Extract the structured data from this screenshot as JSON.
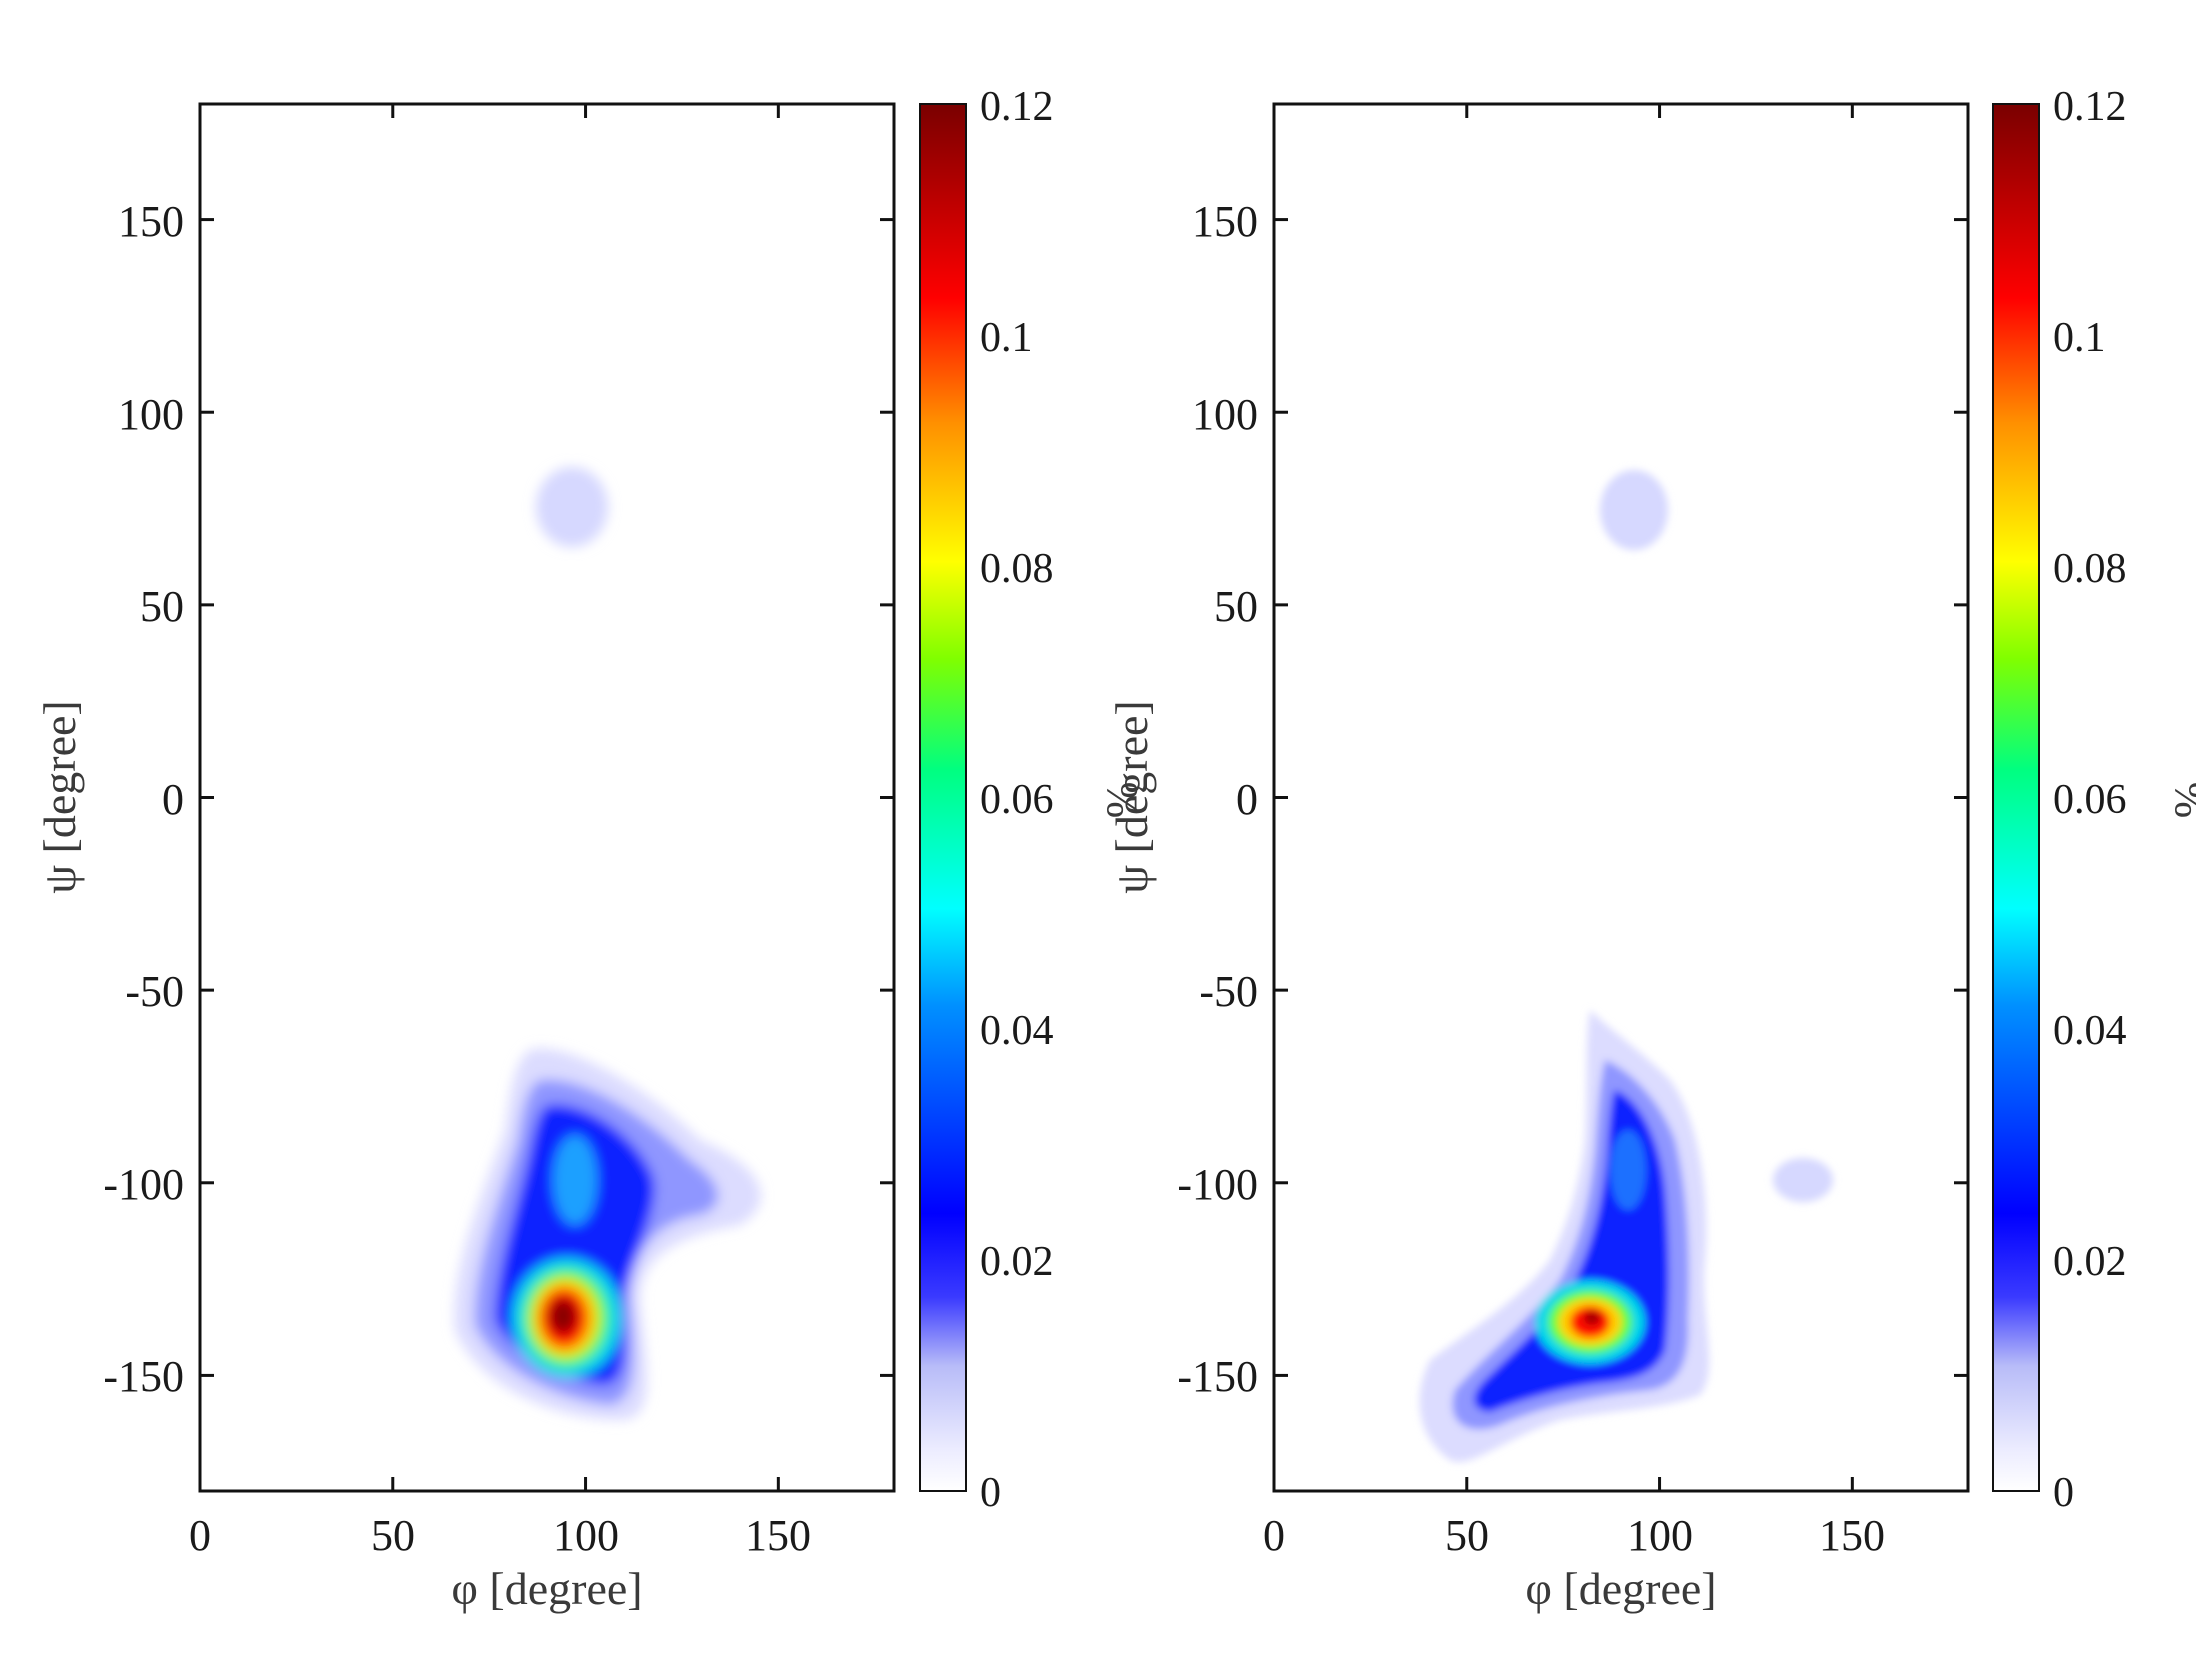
{
  "colors": {
    "colormap": [
      "#ffffff",
      "#d6d8ff",
      "#0000ff",
      "#00ffff",
      "#00ff80",
      "#ffff00",
      "#ff8000",
      "#ff0000",
      "#800000"
    ]
  },
  "chart_data": [
    {
      "type": "heatmap",
      "title": "",
      "xlabel": "φ [degree]",
      "ylabel": "ψ [degree]",
      "xlim": [
        0,
        180
      ],
      "ylim": [
        -180,
        180
      ],
      "x_ticks": [
        "0",
        "50",
        "100",
        "150"
      ],
      "y_ticks": [
        "150",
        "100",
        "50",
        "0",
        "-50",
        "-100",
        "-150"
      ],
      "colorbar": {
        "label": "%",
        "range": [
          0,
          0.12
        ],
        "ticks": [
          "0.12",
          "0.1",
          "0.08",
          "0.06",
          "0.04",
          "0.02",
          "0"
        ]
      },
      "grid": false,
      "peaks": [
        {
          "phi": 93,
          "psi": -135,
          "value": 0.12
        },
        {
          "phi": 97,
          "psi": -100,
          "value": 0.025
        },
        {
          "phi": 130,
          "psi": -102,
          "value": 0.006
        },
        {
          "phi": 95,
          "psi": 75,
          "value": 0.003
        }
      ]
    },
    {
      "type": "heatmap",
      "title": "",
      "xlabel": "φ [degree]",
      "ylabel": "ψ [degree]",
      "xlim": [
        0,
        180
      ],
      "ylim": [
        -180,
        180
      ],
      "x_ticks": [
        "0",
        "50",
        "100",
        "150"
      ],
      "y_ticks": [
        "150",
        "100",
        "50",
        "0",
        "-50",
        "-100",
        "-150"
      ],
      "colorbar": {
        "label": "%",
        "range": [
          0,
          0.12
        ],
        "ticks": [
          "0.12",
          "0.1",
          "0.08",
          "0.06",
          "0.04",
          "0.02",
          "0"
        ]
      },
      "grid": false,
      "peaks": [
        {
          "phi": 82,
          "psi": -137,
          "value": 0.1
        },
        {
          "phi": 90,
          "psi": -95,
          "value": 0.018
        },
        {
          "phi": 55,
          "psi": -155,
          "value": 0.012
        },
        {
          "phi": 140,
          "psi": -100,
          "value": 0.003
        },
        {
          "phi": 92,
          "psi": 75,
          "value": 0.003
        }
      ]
    }
  ]
}
